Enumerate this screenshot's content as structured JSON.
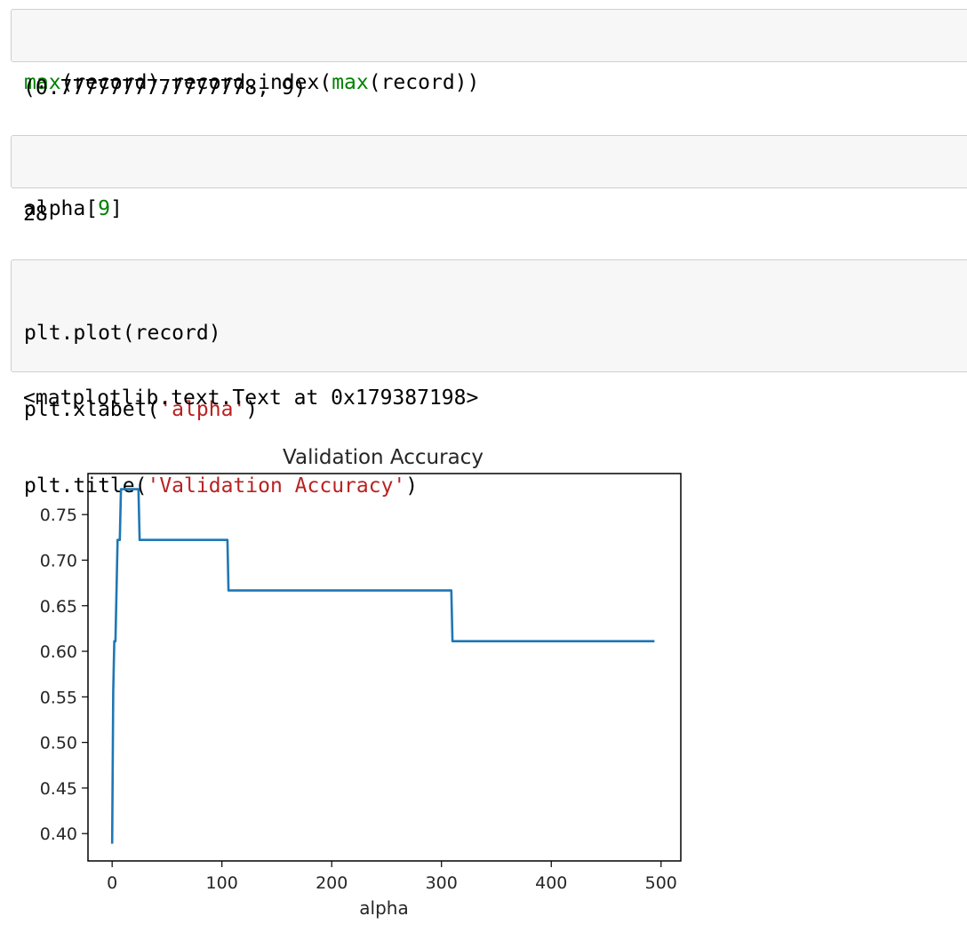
{
  "cells": [
    {
      "input_parts": [
        {
          "text": "max",
          "cls": "kw-green"
        },
        {
          "text": "(record),record.index(",
          "cls": ""
        },
        {
          "text": "max",
          "cls": "kw-green"
        },
        {
          "text": "(record))",
          "cls": ""
        }
      ],
      "output": "(0.7777777777777778, 9)"
    },
    {
      "input_parts": [
        {
          "text": "alpha[",
          "cls": ""
        },
        {
          "text": "9",
          "cls": "num-green"
        },
        {
          "text": "]",
          "cls": ""
        }
      ],
      "output": "28"
    },
    {
      "input_lines": [
        [
          {
            "text": "plt.plot(record)",
            "cls": ""
          }
        ],
        [
          {
            "text": "plt.xlabel(",
            "cls": ""
          },
          {
            "text": "'alpha'",
            "cls": "str-red"
          },
          {
            "text": ")",
            "cls": ""
          }
        ],
        [
          {
            "text": "plt.title(",
            "cls": ""
          },
          {
            "text": "'Validation Accuracy'",
            "cls": "str-red"
          },
          {
            "text": ")",
            "cls": ""
          }
        ]
      ],
      "output": "<matplotlib.text.Text at 0x179387198>"
    }
  ],
  "chart_data": {
    "type": "line",
    "title": "Validation Accuracy",
    "xlabel": "alpha",
    "ylabel": "",
    "xlim": [
      -22,
      518
    ],
    "ylim": [
      0.37,
      0.795
    ],
    "xticks": [
      0,
      100,
      200,
      300,
      400,
      500
    ],
    "xtick_labels": [
      "0",
      "100",
      "200",
      "300",
      "400",
      "500"
    ],
    "yticks": [
      0.4,
      0.45,
      0.5,
      0.55,
      0.6,
      0.65,
      0.7,
      0.75
    ],
    "ytick_labels": [
      "0.40",
      "0.45",
      "0.50",
      "0.55",
      "0.60",
      "0.65",
      "0.70",
      "0.75"
    ],
    "grid": false,
    "series": [
      {
        "color": "#1f77b4",
        "x": [
          0,
          1,
          2,
          3,
          4,
          5,
          6,
          7,
          8,
          9,
          24,
          25,
          105,
          106,
          309,
          310,
          494
        ],
        "y": [
          0.3889,
          0.5556,
          0.6111,
          0.6111,
          0.6667,
          0.7222,
          0.7222,
          0.7222,
          0.7778,
          0.7778,
          0.7778,
          0.7222,
          0.7222,
          0.6667,
          0.6667,
          0.6111,
          0.6111
        ]
      }
    ]
  }
}
